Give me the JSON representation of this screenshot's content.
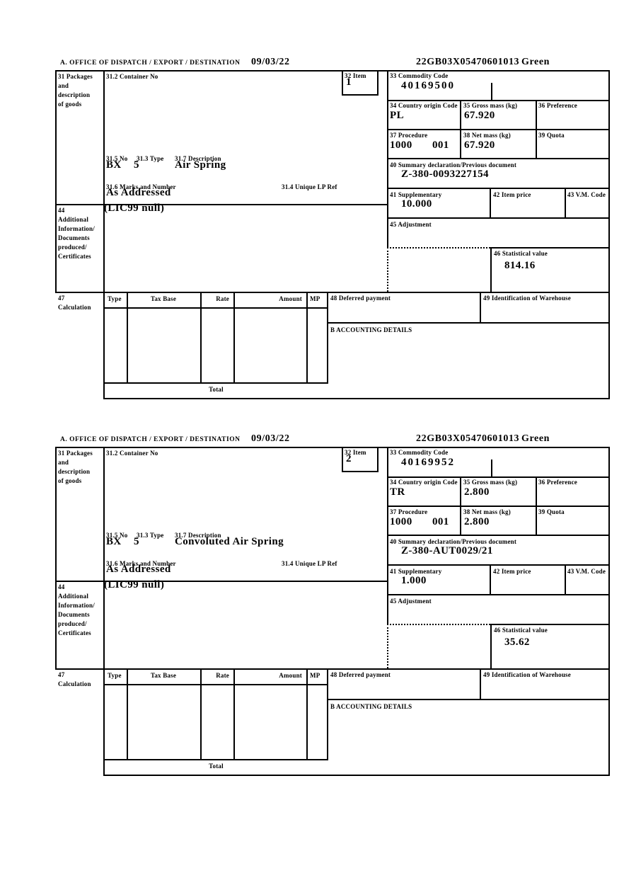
{
  "document": {
    "header": {
      "office_label": "A.  OFFICE OF DISPATCH / EXPORT / DESTINATION",
      "date": "09/03/22",
      "reference": "22GB03X05470601013",
      "routing": "Green"
    },
    "labels": {
      "box31": "31 Packages\nand\ndescription\nof goods",
      "box31_2": "31.2 Container No",
      "box32": "32 Item",
      "box33": "33 Commodity Code",
      "box34": "34 Country origin Code",
      "box35": "35 Gross mass (kg)",
      "box36": "36 Preference",
      "box37": "37 Procedure",
      "box38": "38 Net mass (kg)",
      "box39": "39 Quota",
      "box40": "40 Summary declaration/Previous document",
      "box41": "41 Supplementary",
      "box42": "42 Item price",
      "box43": "43 V.M. Code",
      "box44": "44\nAdditional\nInformation/\nDocuments\nproduced/\nCertificates",
      "box45": "45 Adjustment",
      "box46": "46 Statistical value",
      "box47": "47\nCalculation",
      "box48": "48 Deferred payment",
      "box49": "49 Identification of Warehouse",
      "box31_5": "31.5 No",
      "box31_3": "31.3 Type",
      "box31_7": "31.7 Description",
      "box31_6": "31.6 Marks and Number",
      "box31_4": "31.4 Unique LP Ref",
      "accounting": "B ACCOUNTING DETAILS",
      "total": "Total",
      "col_type": "Type",
      "col_tax_base": "Tax Base",
      "col_rate": "Rate",
      "col_amount": "Amount",
      "col_mp": "MP"
    },
    "items": [
      {
        "item_no": "1",
        "commodity_code": "40169500",
        "country_origin": "PL",
        "gross_mass": "67.920",
        "procedure": "1000",
        "procedure_extra": "001",
        "net_mass": "67.920",
        "previous_document": "Z-380-0093227154",
        "supplementary_units": "10.000",
        "statistical_value": "814.16",
        "package_no": "BX",
        "package_type": "5",
        "goods_description": "Air Spring",
        "marks_numbers": "As Addressed",
        "additional_information": "(LIC99 null)"
      },
      {
        "item_no": "2",
        "commodity_code": "40169952",
        "country_origin": "TR",
        "gross_mass": "2.800",
        "procedure": "1000",
        "procedure_extra": "001",
        "net_mass": "2.800",
        "previous_document": "Z-380-AUT0029/21",
        "supplementary_units": "1.000",
        "statistical_value": "35.62",
        "package_no": "BX",
        "package_type": "5",
        "goods_description": "Convoluted Air Spring",
        "marks_numbers": "As Addressed",
        "additional_information": "(LIC99 null)"
      }
    ]
  }
}
